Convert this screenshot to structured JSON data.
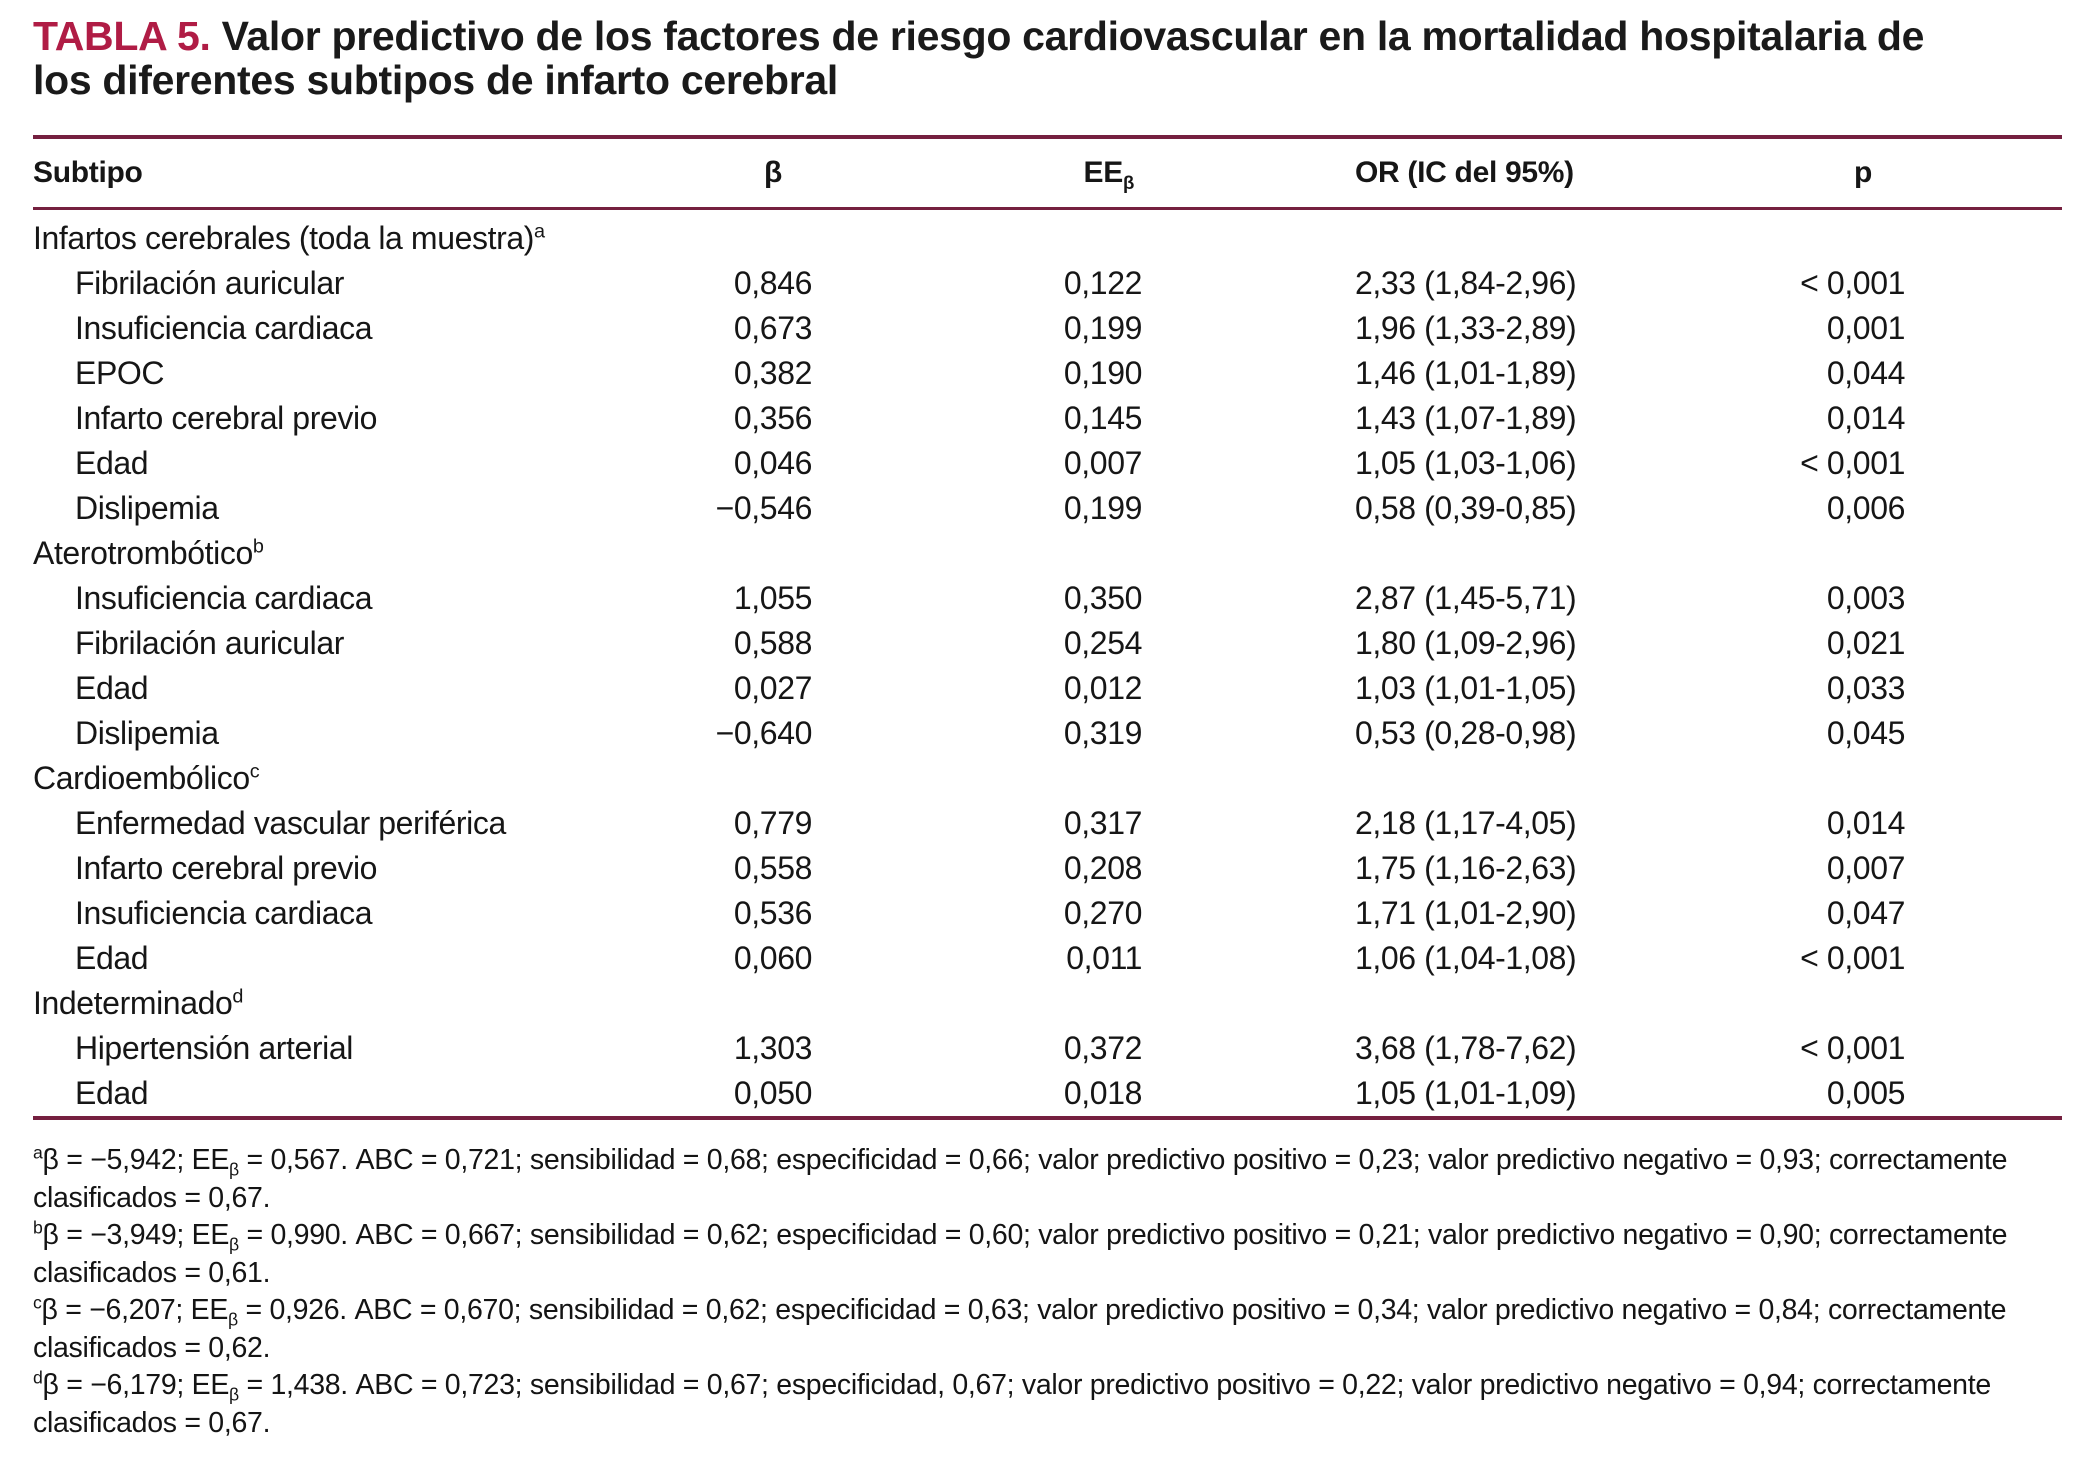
{
  "colors": {
    "accent": "#b01c45",
    "rule": "#75203f",
    "text": "#161616",
    "background": "#ffffff"
  },
  "table": {
    "label": "TABLA 5.",
    "title_rest": "Valor predictivo de los factores de riesgo cardiovascular en la mortalidad hospitalaria de los diferentes subtipos de infarto cerebral",
    "columns": [
      {
        "text": "Subtipo"
      },
      {
        "text": "β"
      },
      {
        "text": "EE",
        "sub": "β"
      },
      {
        "text": "OR (IC del 95%)"
      },
      {
        "text": "p"
      }
    ],
    "groups": [
      {
        "name": "Infartos cerebrales (toda la muestra)",
        "marker": "a",
        "rows": [
          {
            "label": "Fibrilación auricular",
            "beta": "0,846",
            "ee": "0,122",
            "or": "2,33 (1,84-2,96)",
            "p": "< 0,001"
          },
          {
            "label": "Insuficiencia cardiaca",
            "beta": "0,673",
            "ee": "0,199",
            "or": "1,96 (1,33-2,89)",
            "p": "0,001"
          },
          {
            "label": "EPOC",
            "beta": "0,382",
            "ee": "0,190",
            "or": "1,46 (1,01-1,89)",
            "p": "0,044"
          },
          {
            "label": "Infarto cerebral previo",
            "beta": "0,356",
            "ee": "0,145",
            "or": "1,43 (1,07-1,89)",
            "p": "0,014"
          },
          {
            "label": "Edad",
            "beta": "0,046",
            "ee": "0,007",
            "or": "1,05 (1,03-1,06)",
            "p": "< 0,001"
          },
          {
            "label": "Dislipemia",
            "beta": "−0,546",
            "ee": "0,199",
            "or": "0,58 (0,39-0,85)",
            "p": "0,006"
          }
        ]
      },
      {
        "name": "Aterotrombótico",
        "marker": "b",
        "rows": [
          {
            "label": "Insuficiencia cardiaca",
            "beta": "1,055",
            "ee": "0,350",
            "or": "2,87 (1,45-5,71)",
            "p": "0,003"
          },
          {
            "label": "Fibrilación auricular",
            "beta": "0,588",
            "ee": "0,254",
            "or": "1,80 (1,09-2,96)",
            "p": "0,021"
          },
          {
            "label": "Edad",
            "beta": "0,027",
            "ee": "0,012",
            "or": "1,03 (1,01-1,05)",
            "p": "0,033"
          },
          {
            "label": "Dislipemia",
            "beta": "−0,640",
            "ee": "0,319",
            "or": "0,53 (0,28-0,98)",
            "p": "0,045"
          }
        ]
      },
      {
        "name": "Cardioembólico",
        "marker": "c",
        "rows": [
          {
            "label": "Enfermedad vascular periférica",
            "beta": "0,779",
            "ee": "0,317",
            "or": "2,18 (1,17-4,05)",
            "p": "0,014"
          },
          {
            "label": "Infarto cerebral previo",
            "beta": "0,558",
            "ee": "0,208",
            "or": "1,75 (1,16-2,63)",
            "p": "0,007"
          },
          {
            "label": "Insuficiencia cardiaca",
            "beta": "0,536",
            "ee": "0,270",
            "or": "1,71 (1,01-2,90)",
            "p": "0,047"
          },
          {
            "label": "Edad",
            "beta": "0,060",
            "ee": "0,011",
            "or": "1,06 (1,04-1,08)",
            "p": "< 0,001"
          }
        ]
      },
      {
        "name": "Indeterminado",
        "marker": "d",
        "rows": [
          {
            "label": "Hipertensión arterial",
            "beta": "1,303",
            "ee": "0,372",
            "or": "3,68 (1,78-7,62)",
            "p": "< 0,001"
          },
          {
            "label": "Edad",
            "beta": "0,050",
            "ee": "0,018",
            "or": "1,05 (1,01-1,09)",
            "p": "0,005"
          }
        ]
      }
    ],
    "footnotes": [
      {
        "marker": "a",
        "beta": "−5,942",
        "ee": "0,567",
        "rest": "ABC = 0,721; sensibilidad = 0,68; especificidad = 0,66; valor predictivo positivo = 0,23; valor predictivo negativo = 0,93; correctamente clasificados = 0,67."
      },
      {
        "marker": "b",
        "beta": "−3,949",
        "ee": "0,990",
        "rest": "ABC = 0,667; sensibilidad = 0,62; especificidad = 0,60; valor predictivo positivo = 0,21; valor predictivo negativo = 0,90; correctamente clasificados = 0,61."
      },
      {
        "marker": "c",
        "beta": "−6,207",
        "ee": "0,926",
        "rest": "ABC = 0,670; sensibilidad = 0,62; especificidad = 0,63; valor predictivo positivo = 0,34; valor predictivo negativo = 0,84; correctamente clasificados = 0,62."
      },
      {
        "marker": "d",
        "beta": "−6,179",
        "ee": "1,438",
        "rest": "ABC = 0,723; sensibilidad = 0,67; especificidad, 0,67; valor predictivo positivo = 0,22; valor predictivo negativo = 0,94; correctamente clasificados = 0,67."
      }
    ]
  }
}
